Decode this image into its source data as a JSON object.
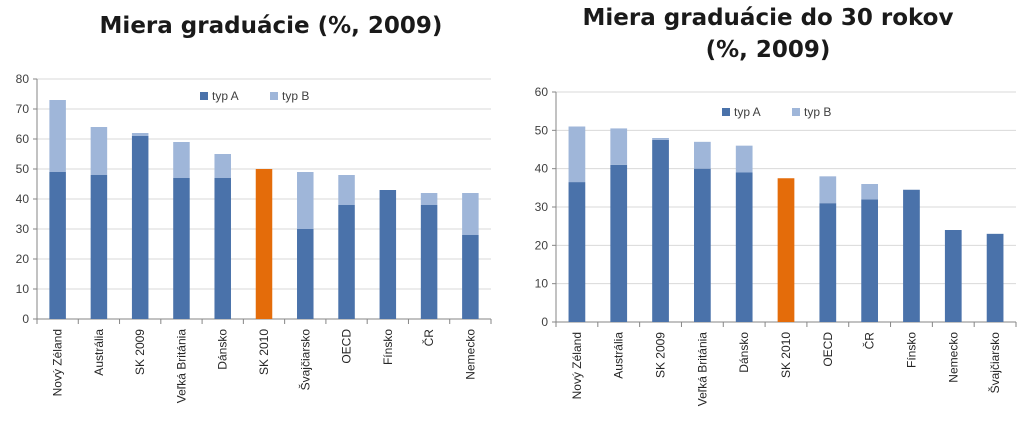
{
  "colors": {
    "typA": "#4a72aa",
    "typB": "#9fb6d9",
    "highlight": "#e46c0a",
    "grid": "#d9d9d9",
    "axis": "#868686"
  },
  "chart_data": [
    {
      "type": "bar",
      "stacked": true,
      "title": "Miera graduácie (%, 2009)",
      "categories": [
        "Nový Zéland",
        "Austrália",
        "SK 2009",
        "Veľká Británia",
        "Dánsko",
        "SK 2010",
        "Švajčiarsko",
        "OECD",
        "Fínsko",
        "ČR",
        "Nemecko"
      ],
      "series": [
        {
          "name": "typ A",
          "values": [
            49,
            48,
            61,
            47,
            47,
            50,
            30,
            38,
            43,
            38,
            28
          ]
        },
        {
          "name": "typ B",
          "values": [
            24,
            16,
            1,
            12,
            8,
            0,
            19,
            10,
            0,
            4,
            14
          ]
        }
      ],
      "highlight_category": "SK 2010",
      "ylim": [
        0,
        80
      ],
      "yticks": [
        0,
        10,
        20,
        30,
        40,
        50,
        60,
        70,
        80
      ],
      "grid": true,
      "legend": "top-center"
    },
    {
      "type": "bar",
      "stacked": true,
      "title": "Miera graduácie do 30 rokov (%, 2009)",
      "title_lines": [
        "Miera graduácie do 30 rokov",
        "(%, 2009)"
      ],
      "categories": [
        "Nový Zéland",
        "Austrália",
        "SK 2009",
        "Veľká Británia",
        "Dánsko",
        "SK 2010",
        "OECD",
        "ČR",
        "Fínsko",
        "Nemecko",
        "Švajčiarsko"
      ],
      "series": [
        {
          "name": "typ A",
          "values": [
            36.5,
            41,
            47.5,
            40,
            39,
            37.5,
            31,
            32,
            34.5,
            24,
            23
          ]
        },
        {
          "name": "typ B",
          "values": [
            14.5,
            9.5,
            0.5,
            7,
            7,
            0,
            7,
            4,
            0,
            0,
            0
          ]
        }
      ],
      "highlight_category": "SK 2010",
      "ylim": [
        0,
        60
      ],
      "yticks": [
        0,
        10,
        20,
        30,
        40,
        50,
        60
      ],
      "grid": true,
      "legend": "top-center"
    }
  ]
}
